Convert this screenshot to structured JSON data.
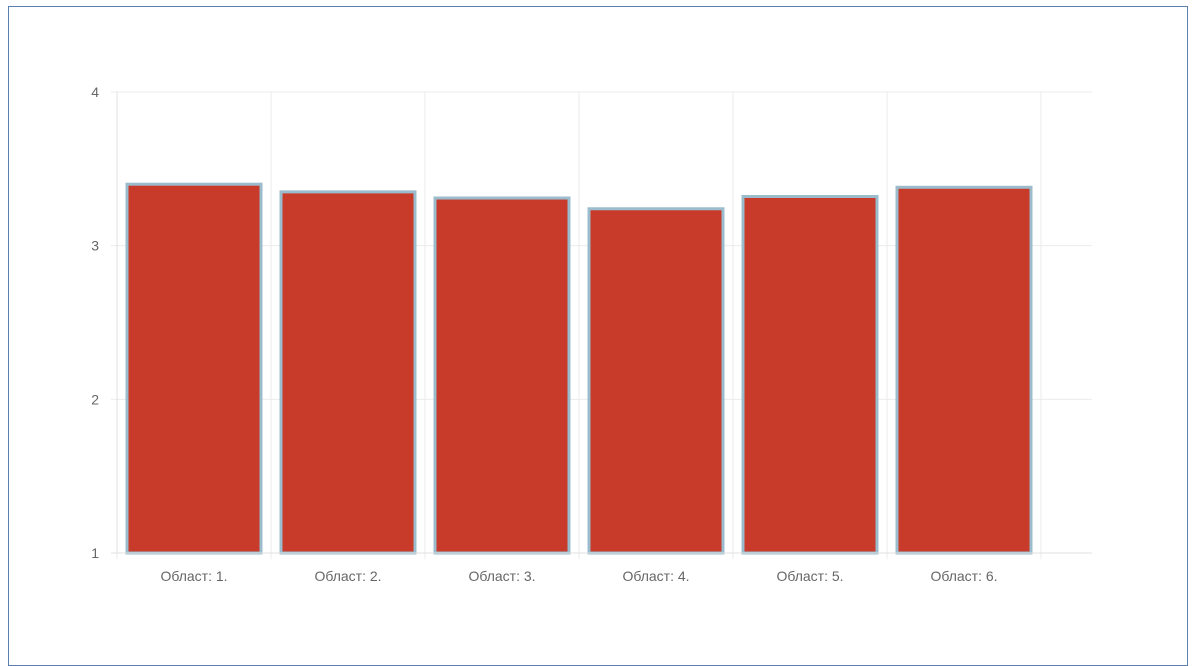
{
  "chart_data": {
    "type": "bar",
    "title": "",
    "xlabel": "",
    "ylabel": "",
    "categories": [
      "Област: 1.",
      "Област: 2.",
      "Област: 3.",
      "Област: 4.",
      "Област: 5.",
      "Област: 6."
    ],
    "values": [
      3.4,
      3.35,
      3.31,
      3.24,
      3.32,
      3.38
    ],
    "ylim": [
      1,
      4
    ],
    "yticks": [
      "1",
      "2",
      "3",
      "4"
    ],
    "grid": true,
    "bar_color": "#c83a2a",
    "bar_border_color": "#9bbccc"
  }
}
